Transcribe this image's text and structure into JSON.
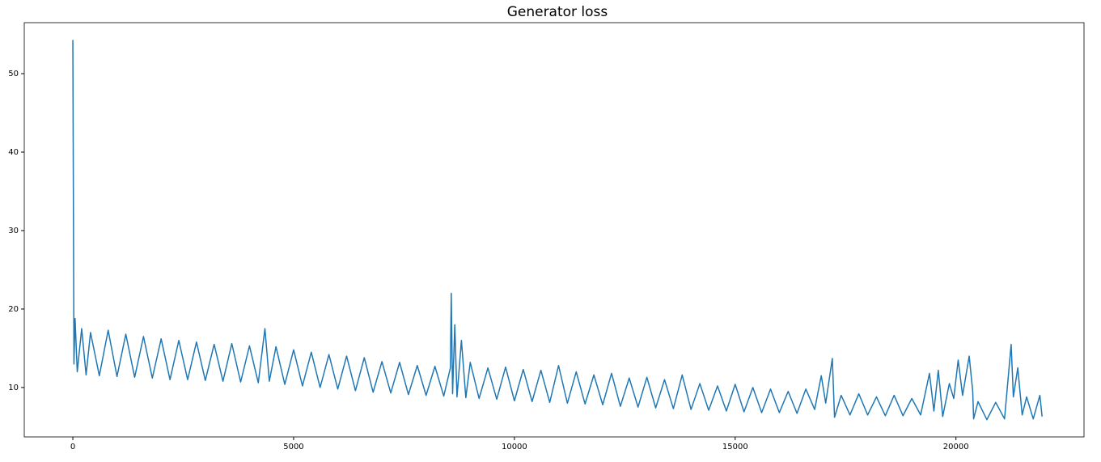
{
  "chart_data": {
    "type": "line",
    "title": "Generator loss",
    "x": [
      0,
      25,
      50,
      100,
      200,
      300,
      400,
      600,
      800,
      1000,
      1200,
      1400,
      1600,
      1800,
      2000,
      2200,
      2400,
      2600,
      2800,
      3000,
      3200,
      3400,
      3600,
      3800,
      4000,
      4200,
      4350,
      4450,
      4600,
      4800,
      5000,
      5200,
      5400,
      5600,
      5800,
      6000,
      6200,
      6400,
      6600,
      6800,
      7000,
      7200,
      7400,
      7600,
      7800,
      8000,
      8200,
      8400,
      8550,
      8570,
      8600,
      8650,
      8700,
      8800,
      8900,
      9000,
      9200,
      9400,
      9600,
      9800,
      10000,
      10200,
      10400,
      10600,
      10800,
      11000,
      11200,
      11400,
      11600,
      11800,
      12000,
      12200,
      12400,
      12600,
      12800,
      13000,
      13200,
      13400,
      13600,
      13800,
      14000,
      14200,
      14400,
      14600,
      14800,
      15000,
      15200,
      15400,
      15600,
      15800,
      16000,
      16200,
      16400,
      16600,
      16800,
      16950,
      17050,
      17200,
      17250,
      17400,
      17600,
      17800,
      18000,
      18200,
      18400,
      18600,
      18800,
      19000,
      19200,
      19400,
      19500,
      19600,
      19700,
      19850,
      19950,
      20050,
      20150,
      20300,
      20380,
      20400,
      20500,
      20700,
      20900,
      21100,
      21250,
      21300,
      21400,
      21500,
      21600,
      21750,
      21900,
      21950
    ],
    "series": [
      {
        "name": "Generator loss",
        "color": "#1f77b4",
        "values": [
          54.3,
          13,
          18.8,
          12,
          17.5,
          11.6,
          17,
          11.5,
          17.3,
          11.4,
          16.8,
          11.3,
          16.5,
          11.2,
          16.2,
          11,
          16,
          11,
          15.8,
          10.9,
          15.5,
          10.8,
          15.6,
          10.7,
          15.3,
          10.6,
          17.5,
          10.8,
          15.2,
          10.4,
          14.8,
          10.2,
          14.5,
          10,
          14.2,
          9.8,
          14,
          9.6,
          13.8,
          9.4,
          13.3,
          9.3,
          13.2,
          9.1,
          12.8,
          9,
          12.7,
          8.9,
          12.5,
          22,
          9.2,
          18,
          8.8,
          16,
          8.7,
          13.2,
          8.6,
          12.5,
          8.5,
          12.6,
          8.3,
          12.3,
          8.2,
          12.2,
          8.1,
          12.8,
          8,
          12,
          7.9,
          11.6,
          7.8,
          11.8,
          7.6,
          11.2,
          7.5,
          11.3,
          7.4,
          11,
          7.3,
          11.6,
          7.2,
          10.5,
          7.1,
          10.2,
          7,
          10.4,
          6.9,
          10,
          6.8,
          9.8,
          6.8,
          9.5,
          6.7,
          9.8,
          7.2,
          11.5,
          8,
          13.7,
          6.2,
          9,
          6.5,
          9.2,
          6.5,
          8.8,
          6.4,
          9,
          6.4,
          8.6,
          6.5,
          11.8,
          7,
          12.2,
          6.3,
          10.5,
          8.6,
          13.5,
          9,
          14,
          9.5,
          6,
          8.2,
          5.9,
          8.1,
          6,
          15.5,
          8.8,
          12.5,
          6.5,
          8.8,
          6,
          9,
          6.3
        ]
      }
    ],
    "xlim": [
      -1100,
      22900
    ],
    "ylim": [
      3.7,
      56.5
    ],
    "xticks": [
      0,
      5000,
      10000,
      15000,
      20000
    ],
    "yticks": [
      10,
      20,
      30,
      40,
      50
    ]
  }
}
